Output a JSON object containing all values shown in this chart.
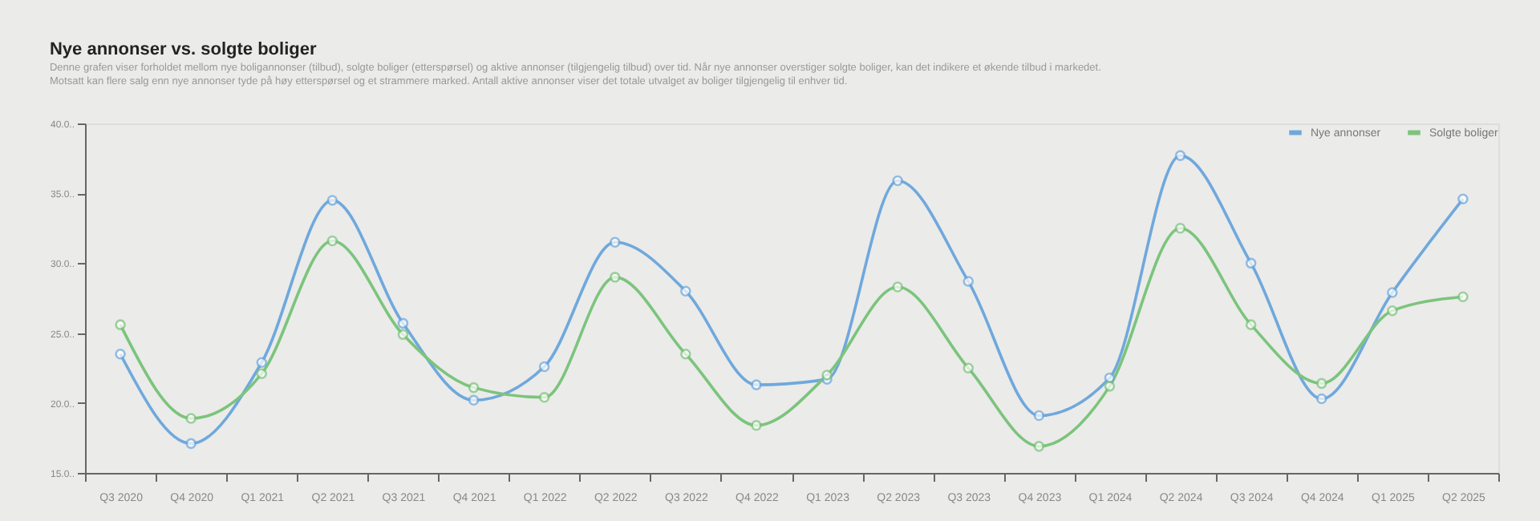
{
  "chart_data": {
    "type": "line",
    "title": "Nye annonser vs. solgte boliger",
    "subtitle": "Denne grafen viser forholdet mellom nye boligannonser (tilbud), solgte boliger (etterspørsel) og aktive annonser (tilgjengelig tilbud) over tid. Når nye annonser overstiger solgte boliger, kan det indikere et økende tilbud i markedet. Motsatt kan flere salg enn nye annonser tyde på høy etterspørsel og et strammere marked. Antall aktive annonser viser det totale utvalget av boliger tilgjengelig til enhver tid.",
    "categories": [
      "Q3 2020",
      "Q4 2020",
      "Q1 2021",
      "Q2 2021",
      "Q3 2021",
      "Q4 2021",
      "Q1 2022",
      "Q2 2022",
      "Q3 2022",
      "Q4 2022",
      "Q1 2023",
      "Q2 2023",
      "Q3 2023",
      "Q4 2023",
      "Q1 2024",
      "Q2 2024",
      "Q3 2024",
      "Q4 2024",
      "Q1 2025",
      "Q2 2025"
    ],
    "series": [
      {
        "name": "Nye annonser",
        "color": "#6fa8dc",
        "values": [
          23.5,
          17.1,
          22.9,
          34.5,
          25.7,
          20.2,
          22.6,
          31.5,
          28.0,
          21.3,
          21.7,
          35.9,
          28.7,
          19.1,
          21.8,
          37.7,
          30.0,
          20.3,
          27.9,
          34.6
        ]
      },
      {
        "name": "Solgte boliger",
        "color": "#7cc47c",
        "values": [
          25.6,
          18.9,
          22.1,
          31.6,
          24.9,
          21.1,
          20.4,
          29.0,
          23.5,
          18.4,
          22.0,
          28.3,
          22.5,
          16.9,
          21.2,
          32.5,
          25.6,
          21.4,
          26.6,
          27.6
        ]
      }
    ],
    "ylim": [
      15,
      40
    ],
    "yticks": [
      {
        "value": 15,
        "label": "15.0.."
      },
      {
        "value": 20,
        "label": "20.0.."
      },
      {
        "value": 25,
        "label": "25.0.."
      },
      {
        "value": 30,
        "label": "30.0.."
      },
      {
        "value": 35,
        "label": "35.0.."
      },
      {
        "value": 40,
        "label": "40.0.."
      }
    ],
    "grid": false,
    "legend": "top right",
    "marker": "circle",
    "line_style": "solid"
  }
}
